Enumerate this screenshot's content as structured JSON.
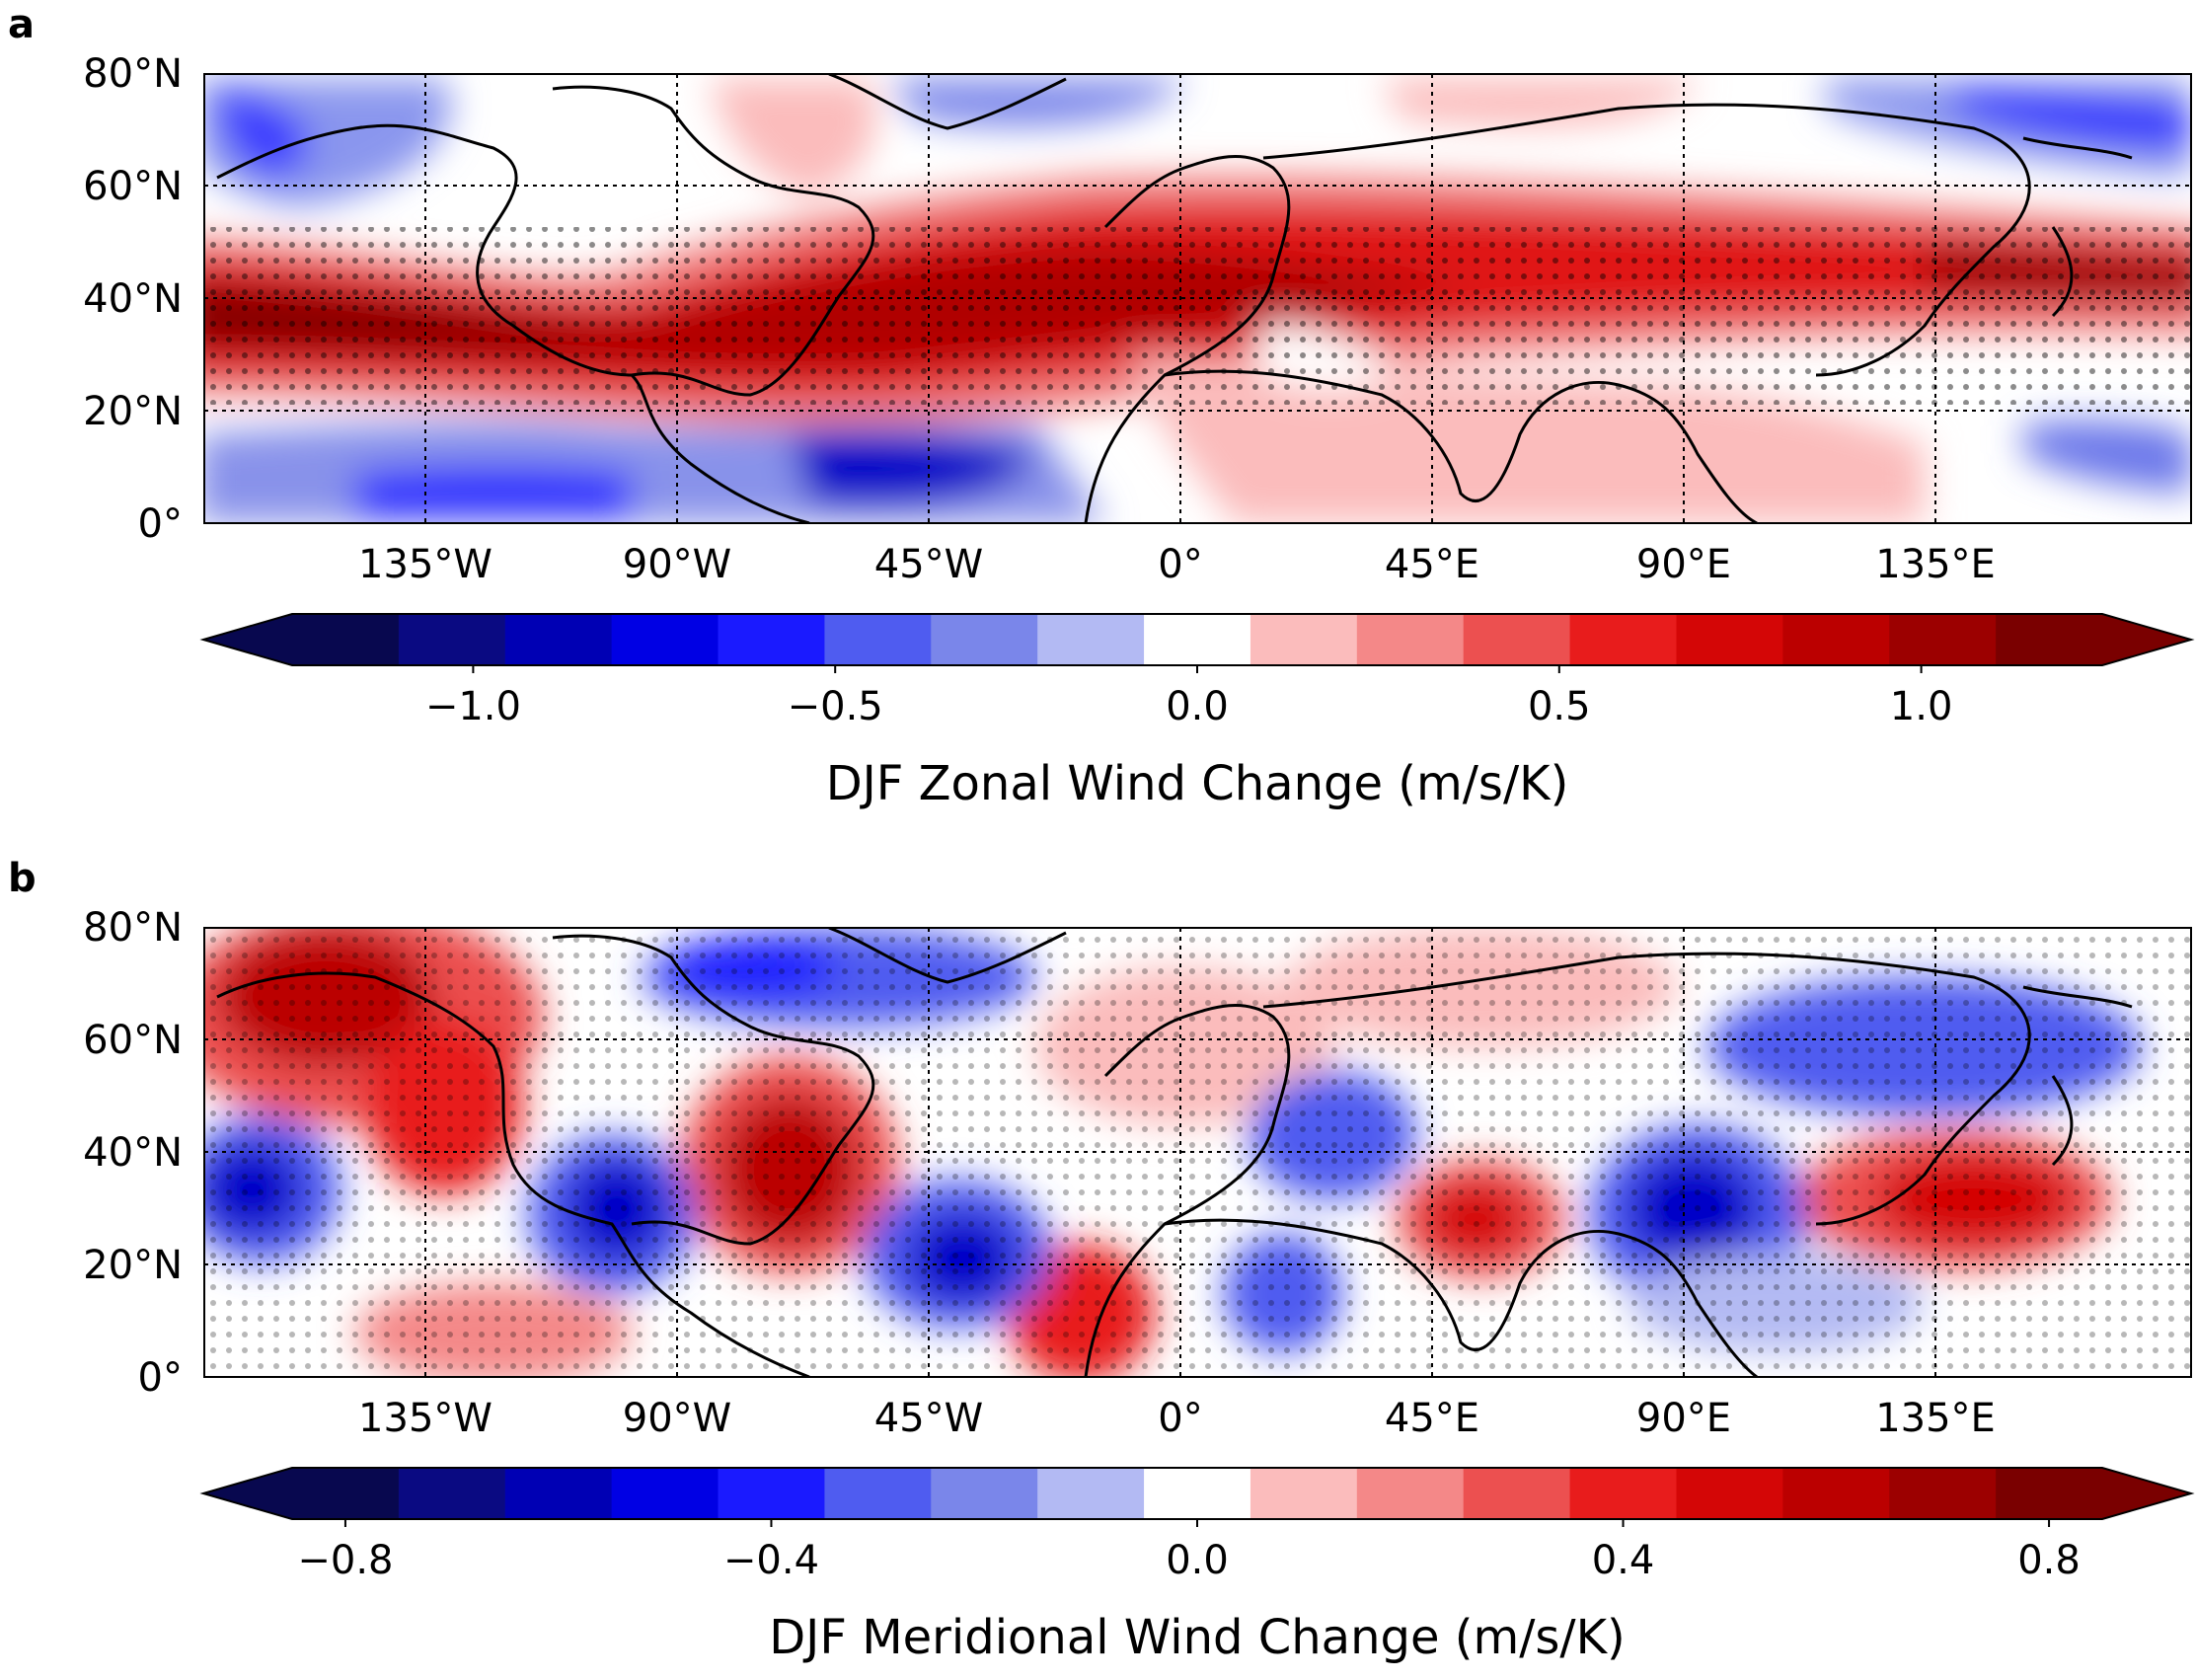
{
  "colors": {
    "diverging": [
      "#08084f",
      "#0a0a82",
      "#0000b4",
      "#0000e4",
      "#1a1aff",
      "#4f5cf0",
      "#7a86ea",
      "#b3baf3",
      "#ffffff",
      "#fbbcbc",
      "#f48888",
      "#ec5050",
      "#e81c1c",
      "#d40606",
      "#bb0000",
      "#9c0000",
      "#7a0000"
    ],
    "coastline": "#000000",
    "gridline": "#000000",
    "stipple": "#000000"
  },
  "panels": [
    {
      "letter": "a",
      "lat_labels": [
        "80°N",
        "60°N",
        "40°N",
        "20°N",
        "0°"
      ],
      "lon_labels": [
        "135°W",
        "90°W",
        "45°W",
        "0°",
        "45°E",
        "90°E",
        "135°E"
      ],
      "colorbar": {
        "ticks": [
          "−1.0",
          "−0.5",
          "0.0",
          "0.5",
          "1.0"
        ],
        "tick_values": [
          -1.0,
          -0.5,
          0.0,
          0.5,
          1.0
        ],
        "range": [
          -1.25,
          1.25
        ],
        "label": "DJF Zonal Wind Change (m/s/K)"
      }
    },
    {
      "letter": "b",
      "lat_labels": [
        "80°N",
        "60°N",
        "40°N",
        "20°N",
        "0°"
      ],
      "lon_labels": [
        "135°W",
        "90°W",
        "45°W",
        "0°",
        "45°E",
        "90°E",
        "135°E"
      ],
      "colorbar": {
        "ticks": [
          "−0.8",
          "−0.4",
          "0.0",
          "0.4",
          "0.8"
        ],
        "tick_values": [
          -0.8,
          -0.4,
          0.0,
          0.4,
          0.8
        ],
        "range": [
          -0.85,
          0.85
        ],
        "label": "DJF Meridional Wind Change (m/s/K)"
      }
    }
  ]
}
